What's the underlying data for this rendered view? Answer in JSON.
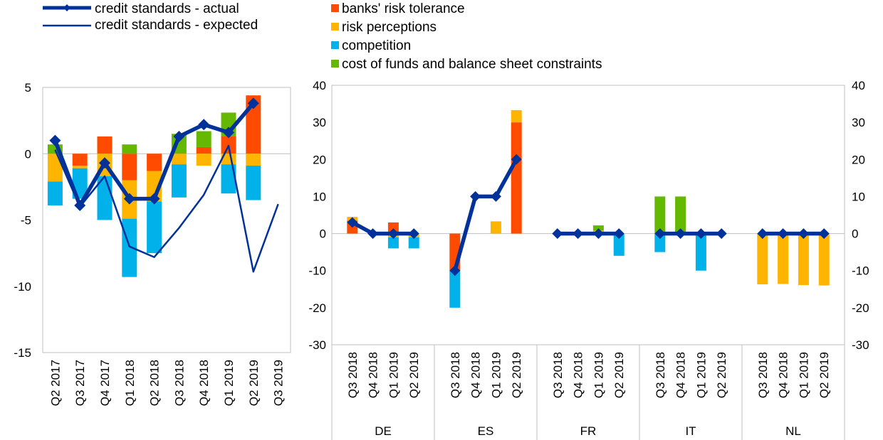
{
  "colors": {
    "banks_risk_tolerance": "#FF4B00",
    "risk_perceptions": "#FFB400",
    "competition": "#00B1EA",
    "cost_of_funds": "#65B800",
    "line": "#003299"
  },
  "legend": {
    "actual": "credit standards - actual",
    "expected": "credit standards - expected",
    "banks_risk_tolerance": "banks' risk tolerance",
    "risk_perceptions": "risk perceptions",
    "competition": "competition",
    "cost_of_funds": "cost of funds and balance sheet constraints"
  },
  "chart_data": [
    {
      "type": "bar",
      "stacked": true,
      "ylim": [
        -15,
        5
      ],
      "yticks": [
        5,
        0,
        -5,
        -10,
        -15
      ],
      "categories": [
        "Q2 2017",
        "Q3 2017",
        "Q4 2017",
        "Q1 2018",
        "Q2 2018",
        "Q3 2018",
        "Q4 2018",
        "Q1 2019",
        "Q2 2019",
        "Q3 2019"
      ],
      "series": [
        {
          "name": "banks' risk tolerance",
          "key": "banks_risk_tolerance",
          "values": [
            0,
            -0.9,
            1.3,
            -2.0,
            -1.3,
            0,
            0.5,
            1.3,
            4.4,
            null
          ]
        },
        {
          "name": "risk perceptions",
          "key": "risk_perceptions",
          "values": [
            -2.1,
            -0.2,
            -1.7,
            -2.9,
            -2.3,
            -0.8,
            -0.9,
            -0.8,
            -0.9,
            null
          ]
        },
        {
          "name": "competition",
          "key": "competition",
          "values": [
            -1.8,
            -2.3,
            -3.3,
            -4.4,
            -3.9,
            -2.5,
            0,
            -2.2,
            -2.6,
            null
          ]
        },
        {
          "name": "cost of funds and balance sheet constraints",
          "key": "cost_of_funds",
          "values": [
            0.7,
            0,
            0,
            0.7,
            0,
            1.5,
            1.2,
            1.8,
            0,
            null
          ]
        }
      ],
      "lines": [
        {
          "name": "credit standards - actual",
          "key": "actual",
          "values": [
            1.0,
            -3.9,
            -0.7,
            -3.4,
            -3.4,
            1.3,
            2.2,
            1.6,
            3.8,
            null
          ]
        },
        {
          "name": "credit standards - expected",
          "key": "expected",
          "values": [
            0.3,
            -4.0,
            -1.7,
            -7.0,
            -7.8,
            -5.6,
            -3.1,
            0.6,
            -8.9,
            -3.8
          ]
        }
      ],
      "grid": false
    },
    {
      "type": "bar",
      "stacked": true,
      "ylim": [
        -30,
        40
      ],
      "yticks": [
        40,
        30,
        20,
        10,
        0,
        -10,
        -20,
        -30
      ],
      "groups": [
        {
          "country": "DE",
          "categories": [
            "Q3 2018",
            "Q4 2018",
            "Q1 2019",
            "Q2 2019"
          ],
          "series": [
            {
              "name": "banks' risk tolerance",
              "key": "banks_risk_tolerance",
              "values": [
                3.5,
                0,
                3,
                0
              ]
            },
            {
              "name": "risk perceptions",
              "key": "risk_perceptions",
              "values": [
                1.0,
                0,
                -1,
                -1
              ]
            },
            {
              "name": "competition",
              "key": "competition",
              "values": [
                0,
                0,
                -3,
                -3
              ]
            },
            {
              "name": "cost of funds and balance sheet constraints",
              "key": "cost_of_funds",
              "values": [
                0,
                0,
                0,
                0
              ]
            }
          ],
          "actual": [
            3,
            0,
            0,
            0
          ]
        },
        {
          "country": "ES",
          "categories": [
            "Q3 2018",
            "Q4 2018",
            "Q1 2019",
            "Q2 2019"
          ],
          "series": [
            {
              "name": "banks' risk tolerance",
              "key": "banks_risk_tolerance",
              "values": [
                -10,
                0,
                0,
                30
              ]
            },
            {
              "name": "risk perceptions",
              "key": "risk_perceptions",
              "values": [
                0,
                0,
                3.3,
                3.3
              ]
            },
            {
              "name": "competition",
              "key": "competition",
              "values": [
                -10,
                0,
                0,
                0
              ]
            },
            {
              "name": "cost of funds and balance sheet constraints",
              "key": "cost_of_funds",
              "values": [
                0,
                0,
                0,
                0
              ]
            }
          ],
          "actual": [
            -10,
            10,
            10,
            20
          ]
        },
        {
          "country": "FR",
          "categories": [
            "Q3 2018",
            "Q4 2018",
            "Q1 2019",
            "Q2 2019"
          ],
          "series": [
            {
              "name": "banks' risk tolerance",
              "key": "banks_risk_tolerance",
              "values": [
                0,
                0,
                0,
                0
              ]
            },
            {
              "name": "risk perceptions",
              "key": "risk_perceptions",
              "values": [
                0,
                0,
                0.8,
                0
              ]
            },
            {
              "name": "competition",
              "key": "competition",
              "values": [
                0,
                0,
                0,
                -6
              ]
            },
            {
              "name": "cost of funds and balance sheet constraints",
              "key": "cost_of_funds",
              "values": [
                0,
                0,
                1.4,
                0
              ]
            }
          ],
          "actual": [
            0,
            0,
            0,
            0
          ]
        },
        {
          "country": "IT",
          "categories": [
            "Q3 2018",
            "Q4 2018",
            "Q1 2019",
            "Q2 2019"
          ],
          "series": [
            {
              "name": "banks' risk tolerance",
              "key": "banks_risk_tolerance",
              "values": [
                0,
                0,
                0,
                0
              ]
            },
            {
              "name": "risk perceptions",
              "key": "risk_perceptions",
              "values": [
                0,
                0,
                0,
                0
              ]
            },
            {
              "name": "competition",
              "key": "competition",
              "values": [
                -5,
                0,
                -10,
                0
              ]
            },
            {
              "name": "cost of funds and balance sheet constraints",
              "key": "cost_of_funds",
              "values": [
                10,
                10,
                0,
                0
              ]
            }
          ],
          "actual": [
            0,
            0,
            0,
            0
          ]
        },
        {
          "country": "NL",
          "categories": [
            "Q3 2018",
            "Q4 2018",
            "Q1 2019",
            "Q2 2019"
          ],
          "series": [
            {
              "name": "banks' risk tolerance",
              "key": "banks_risk_tolerance",
              "values": [
                0,
                0,
                0,
                0
              ]
            },
            {
              "name": "risk perceptions",
              "key": "risk_perceptions",
              "values": [
                -13.7,
                -13.6,
                -13.9,
                -14
              ]
            },
            {
              "name": "competition",
              "key": "competition",
              "values": [
                0,
                0,
                0,
                0
              ]
            },
            {
              "name": "cost of funds and balance sheet constraints",
              "key": "cost_of_funds",
              "values": [
                0,
                0,
                0,
                0
              ]
            }
          ],
          "actual": [
            0,
            0,
            0,
            0
          ]
        }
      ],
      "grid": false
    }
  ]
}
